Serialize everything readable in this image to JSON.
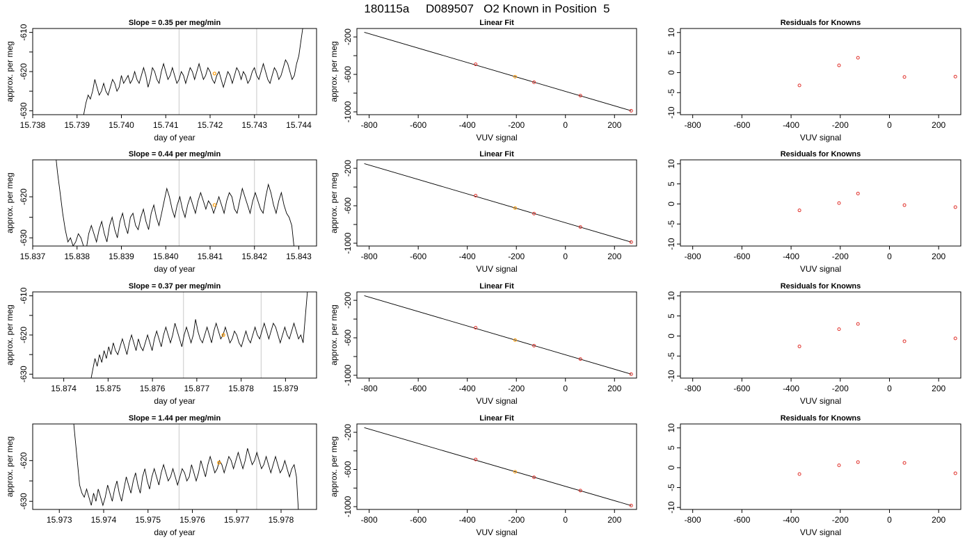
{
  "title": "180115a     D089507   O2 Known in Position  5",
  "chart_data": [
    {
      "type": "line",
      "title": "Slope =  0.35  per meg/min",
      "xlabel": "day of year",
      "ylabel": "approx. per meg",
      "xlim": [
        15.738,
        15.7444
      ],
      "ylim": [
        -631,
        -609
      ],
      "xticks": [
        "15.738",
        "15.739",
        "15.740",
        "15.741",
        "15.742",
        "15.743",
        "15.744"
      ],
      "yticks": [
        "-610",
        "-620",
        "-630"
      ],
      "vlines": [
        15.7413,
        15.74305
      ],
      "marker": {
        "x": 15.7421,
        "y": -620.5
      },
      "series": [
        {
          "x_start": 15.7391,
          "x_end": 15.7441,
          "values": [
            -634,
            -631,
            -628,
            -626,
            -627,
            -625,
            -622,
            -624,
            -626,
            -625,
            -623,
            -625,
            -626,
            -624,
            -622,
            -623,
            -625,
            -624,
            -621,
            -623,
            -622,
            -621,
            -623,
            -622,
            -620,
            -622,
            -623,
            -621,
            -619,
            -621,
            -624,
            -622,
            -619,
            -620,
            -622,
            -623,
            -620,
            -618,
            -620,
            -622,
            -621,
            -619,
            -621,
            -623,
            -622,
            -620,
            -621,
            -623,
            -621,
            -619,
            -620,
            -622,
            -620,
            -618,
            -620,
            -622,
            -621,
            -619,
            -620,
            -622,
            -623,
            -621,
            -620,
            -622,
            -624,
            -622,
            -620,
            -621,
            -623,
            -621,
            -619,
            -620,
            -622,
            -620,
            -621,
            -623,
            -622,
            -620,
            -619,
            -621,
            -622,
            -620,
            -618,
            -620,
            -622,
            -623,
            -621,
            -619,
            -620,
            -622,
            -621,
            -619,
            -617,
            -618,
            -620,
            -622,
            -621,
            -618,
            -616,
            -612,
            -608
          ]
        }
      ]
    },
    {
      "type": "line",
      "title": "Linear Fit",
      "xlabel": "VUV signal",
      "ylabel": "approx. per meg",
      "xlim": [
        -850,
        290
      ],
      "ylim": [
        -1030,
        -110
      ],
      "xticks": [
        "-800",
        "-600",
        "-400",
        "-200",
        "0",
        "200"
      ],
      "yticks": [
        "-200",
        "-600",
        "-1000"
      ],
      "fit_line": {
        "x": [
          -820,
          268
        ],
        "y": [
          -150,
          -988
        ]
      },
      "points": {
        "x": [
          -366,
          -205,
          -128,
          61,
          268
        ],
        "y": [
          -492,
          -625,
          -684,
          -827,
          -988
        ],
        "highlight_index": 1
      }
    },
    {
      "type": "scatter",
      "title": "Residuals for Knowns",
      "xlabel": "VUV signal",
      "xlim": [
        -850,
        290
      ],
      "ylim": [
        -10.5,
        11
      ],
      "xticks": [
        "-800",
        "-600",
        "-400",
        "-200",
        "0",
        "200"
      ],
      "yticks": [
        "10",
        "5",
        "0",
        "-5",
        "-10"
      ],
      "points": {
        "x": [
          -366,
          -205,
          -128,
          61,
          268
        ],
        "y": [
          -3.2,
          1.8,
          3.7,
          -1.1,
          -1.0
        ]
      }
    },
    {
      "type": "line",
      "title": "Slope =  0.44  per meg/min",
      "xlabel": "day of year",
      "ylabel": "approx. per meg",
      "xlim": [
        15.837,
        15.8434
      ],
      "ylim": [
        -632,
        -611
      ],
      "xticks": [
        "15.837",
        "15.838",
        "15.839",
        "15.840",
        "15.841",
        "15.842",
        "15.843"
      ],
      "yticks": [
        "-620",
        "-630"
      ],
      "vlines": [
        15.8403,
        15.842
      ],
      "marker": {
        "x": 15.8411,
        "y": -622
      },
      "series": [
        {
          "x_start": 15.8375,
          "x_end": 15.8429,
          "values": [
            -608,
            -614,
            -619,
            -624,
            -628,
            -631,
            -630,
            -632,
            -631,
            -629,
            -630,
            -632,
            -633,
            -629,
            -627,
            -629,
            -631,
            -628,
            -626,
            -629,
            -631,
            -627,
            -625,
            -628,
            -630,
            -626,
            -624,
            -627,
            -629,
            -625,
            -624,
            -627,
            -628,
            -625,
            -623,
            -626,
            -628,
            -624,
            -622,
            -625,
            -627,
            -624,
            -621,
            -618,
            -620,
            -623,
            -625,
            -622,
            -620,
            -623,
            -625,
            -622,
            -620,
            -622,
            -624,
            -621,
            -619,
            -621,
            -623,
            -621,
            -622,
            -624,
            -622,
            -620,
            -622,
            -624,
            -621,
            -619,
            -620,
            -623,
            -624,
            -621,
            -618,
            -620,
            -622,
            -624,
            -621,
            -619,
            -621,
            -623,
            -624,
            -620,
            -617,
            -619,
            -622,
            -624,
            -621,
            -619,
            -622,
            -624,
            -625,
            -627,
            -633
          ]
        }
      ]
    },
    {
      "type": "line",
      "title": "Linear Fit",
      "xlabel": "VUV signal",
      "ylabel": "approx. per meg",
      "xlim": [
        -850,
        290
      ],
      "ylim": [
        -1030,
        -110
      ],
      "xticks": [
        "-800",
        "-600",
        "-400",
        "-200",
        "0",
        "200"
      ],
      "yticks": [
        "-200",
        "-600",
        "-1000"
      ],
      "fit_line": {
        "x": [
          -820,
          268
        ],
        "y": [
          -150,
          -988
        ]
      },
      "points": {
        "x": [
          -366,
          -205,
          -128,
          61,
          268
        ],
        "y": [
          -492,
          -625,
          -684,
          -827,
          -988
        ],
        "highlight_index": 1
      }
    },
    {
      "type": "scatter",
      "title": "Residuals for Knowns",
      "xlabel": "VUV signal",
      "xlim": [
        -850,
        290
      ],
      "ylim": [
        -10.5,
        11
      ],
      "xticks": [
        "-800",
        "-600",
        "-400",
        "-200",
        "0",
        "200"
      ],
      "yticks": [
        "10",
        "5",
        "0",
        "-5",
        "-10"
      ],
      "points": {
        "x": [
          -366,
          -205,
          -128,
          61,
          268
        ],
        "y": [
          -1.6,
          0.2,
          2.6,
          -0.3,
          -0.8
        ]
      }
    },
    {
      "type": "line",
      "title": "Slope =  0.37  per meg/min",
      "xlabel": "day of year",
      "ylabel": "approx. per meg",
      "xlim": [
        15.8733,
        15.8797
      ],
      "ylim": [
        -631,
        -609
      ],
      "xticks": [
        "15.874",
        "15.875",
        "15.876",
        "15.877",
        "15.878",
        "15.879"
      ],
      "yticks": [
        "-610",
        "-620",
        "-630"
      ],
      "vlines": [
        15.8767,
        15.87845
      ],
      "marker": {
        "x": 15.8776,
        "y": -620
      },
      "series": [
        {
          "x_start": 15.8746,
          "x_end": 15.8795,
          "values": [
            -632,
            -629,
            -626,
            -628,
            -625,
            -627,
            -624,
            -626,
            -623,
            -625,
            -622,
            -624,
            -625,
            -623,
            -621,
            -623,
            -625,
            -622,
            -620,
            -622,
            -624,
            -621,
            -623,
            -624,
            -622,
            -620,
            -622,
            -624,
            -621,
            -619,
            -621,
            -623,
            -620,
            -618,
            -620,
            -622,
            -620,
            -617,
            -619,
            -621,
            -623,
            -620,
            -618,
            -620,
            -622,
            -620,
            -616,
            -619,
            -621,
            -622,
            -620,
            -618,
            -620,
            -622,
            -619,
            -617,
            -619,
            -621,
            -620,
            -618,
            -620,
            -622,
            -621,
            -619,
            -620,
            -622,
            -623,
            -621,
            -619,
            -621,
            -622,
            -620,
            -618,
            -620,
            -621,
            -619,
            -617,
            -619,
            -621,
            -619,
            -617,
            -618,
            -620,
            -622,
            -620,
            -618,
            -620,
            -621,
            -619,
            -617,
            -619,
            -621,
            -620,
            -622,
            -615,
            -608
          ]
        }
      ]
    },
    {
      "type": "line",
      "title": "Linear Fit",
      "xlabel": "VUV signal",
      "ylabel": "approx. per meg",
      "xlim": [
        -850,
        290
      ],
      "ylim": [
        -1030,
        -110
      ],
      "xticks": [
        "-800",
        "-600",
        "-400",
        "-200",
        "0",
        "200"
      ],
      "yticks": [
        "-200",
        "-600",
        "-1000"
      ],
      "fit_line": {
        "x": [
          -820,
          268
        ],
        "y": [
          -150,
          -988
        ]
      },
      "points": {
        "x": [
          -366,
          -205,
          -128,
          61,
          268
        ],
        "y": [
          -492,
          -625,
          -684,
          -827,
          -988
        ],
        "highlight_index": 1
      }
    },
    {
      "type": "scatter",
      "title": "Residuals for Knowns",
      "xlabel": "VUV signal",
      "xlim": [
        -850,
        290
      ],
      "ylim": [
        -10.5,
        11
      ],
      "xticks": [
        "-800",
        "-600",
        "-400",
        "-200",
        "0",
        "200"
      ],
      "yticks": [
        "10",
        "5",
        "0",
        "-5",
        "-10"
      ],
      "points": {
        "x": [
          -366,
          -205,
          -128,
          61,
          268
        ],
        "y": [
          -2.6,
          1.7,
          3.0,
          -1.3,
          -0.6
        ]
      }
    },
    {
      "type": "line",
      "title": "Slope =  1.44  per meg/min",
      "xlabel": "day of year",
      "ylabel": "approx. per meg",
      "xlim": [
        15.9724,
        15.9788
      ],
      "ylim": [
        -632,
        -611
      ],
      "xticks": [
        "15.973",
        "15.974",
        "15.975",
        "15.976",
        "15.977",
        "15.978"
      ],
      "yticks": [
        "-620",
        "-630"
      ],
      "vlines": [
        15.9757,
        15.97745
      ],
      "marker": {
        "x": 15.9766,
        "y": -620.5
      },
      "series": [
        {
          "x_start": 15.9733,
          "x_end": 15.9784,
          "values": [
            -608,
            -614,
            -620,
            -626,
            -628,
            -629,
            -627,
            -629,
            -631,
            -628,
            -630,
            -627,
            -629,
            -631,
            -629,
            -626,
            -628,
            -630,
            -627,
            -625,
            -628,
            -630,
            -627,
            -624,
            -626,
            -628,
            -625,
            -623,
            -626,
            -628,
            -624,
            -622,
            -625,
            -627,
            -624,
            -622,
            -624,
            -626,
            -623,
            -621,
            -623,
            -625,
            -624,
            -622,
            -624,
            -626,
            -624,
            -622,
            -623,
            -625,
            -624,
            -621,
            -623,
            -625,
            -623,
            -620,
            -622,
            -624,
            -621,
            -619,
            -621,
            -623,
            -622,
            -620,
            -621,
            -623,
            -621,
            -619,
            -620,
            -622,
            -620,
            -618,
            -620,
            -622,
            -620,
            -617,
            -619,
            -621,
            -620,
            -618,
            -620,
            -622,
            -621,
            -619,
            -621,
            -623,
            -621,
            -619,
            -621,
            -623,
            -622,
            -620,
            -622,
            -624,
            -622,
            -621,
            -624,
            -634
          ]
        }
      ]
    },
    {
      "type": "line",
      "title": "Linear Fit",
      "xlabel": "VUV signal",
      "ylabel": "approx. per meg",
      "xlim": [
        -850,
        290
      ],
      "ylim": [
        -1030,
        -110
      ],
      "xticks": [
        "-800",
        "-600",
        "-400",
        "-200",
        "0",
        "200"
      ],
      "yticks": [
        "-200",
        "-600",
        "-1000"
      ],
      "fit_line": {
        "x": [
          -820,
          268
        ],
        "y": [
          -150,
          -988
        ]
      },
      "points": {
        "x": [
          -366,
          -205,
          -128,
          61,
          268
        ],
        "y": [
          -492,
          -625,
          -684,
          -827,
          -988
        ],
        "highlight_index": 1
      }
    },
    {
      "type": "scatter",
      "title": "Residuals for Knowns",
      "xlabel": "VUV signal",
      "xlim": [
        -850,
        290
      ],
      "ylim": [
        -10.5,
        11
      ],
      "xticks": [
        "-800",
        "-600",
        "-400",
        "-200",
        "0",
        "200"
      ],
      "yticks": [
        "10",
        "5",
        "0",
        "-5",
        "-10"
      ],
      "points": {
        "x": [
          -366,
          -205,
          -128,
          61,
          268
        ],
        "y": [
          -1.6,
          0.6,
          1.4,
          1.2,
          -1.4
        ]
      }
    }
  ]
}
